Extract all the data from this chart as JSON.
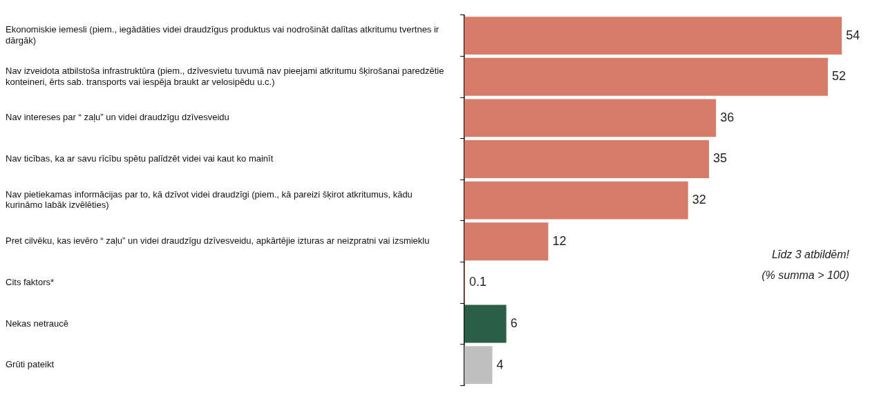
{
  "chart_data": {
    "type": "bar",
    "orientation": "horizontal",
    "categories": [
      "Ekonomiskie iemesli (piem., iegādāties videi draudzīgus produktus vai nodrošināt dalītas atkritumu tvertnes ir dārgāk)",
      "Nav izveidota atbilstoša infrastruktūra (piem., dzīvesvietu tuvumā nav pieejami atkritumu šķirošanai paredzētie konteineri, ērts sab. transports vai iespēja braukt ar velosipēdu u.c.)",
      "Nav intereses par “ zaļu” un videi draudzīgu dzīvesveidu",
      "Nav ticības, ka ar savu rīcību spētu palīdzēt videi vai kaut ko mainīt",
      "Nav pietiekamas informācijas par to, kā dzīvot videi draudzīgi (piem., kā pareizi šķirot atkritumus, kādu kurināmo labāk izvēlēties)",
      "Pret cilvēku, kas ievēro “ zaļu” un videi draudzīgu dzīvesveidu, apkārtējie izturas ar neizpratni vai izsmieklu",
      "Cits faktors*",
      "Nekas netraucē",
      "Grūti pateikt"
    ],
    "values": [
      54,
      52,
      36,
      35,
      32,
      12,
      0.1,
      6,
      4
    ],
    "colors": [
      "#d87c6a",
      "#d87c6a",
      "#d87c6a",
      "#d87c6a",
      "#d87c6a",
      "#d87c6a",
      "#d87c6a",
      "#2a5e45",
      "#c0c0c0"
    ],
    "data_labels": true,
    "annotations": [
      "Līdz 3 atbildēm!",
      "(% summa > 100)"
    ]
  }
}
